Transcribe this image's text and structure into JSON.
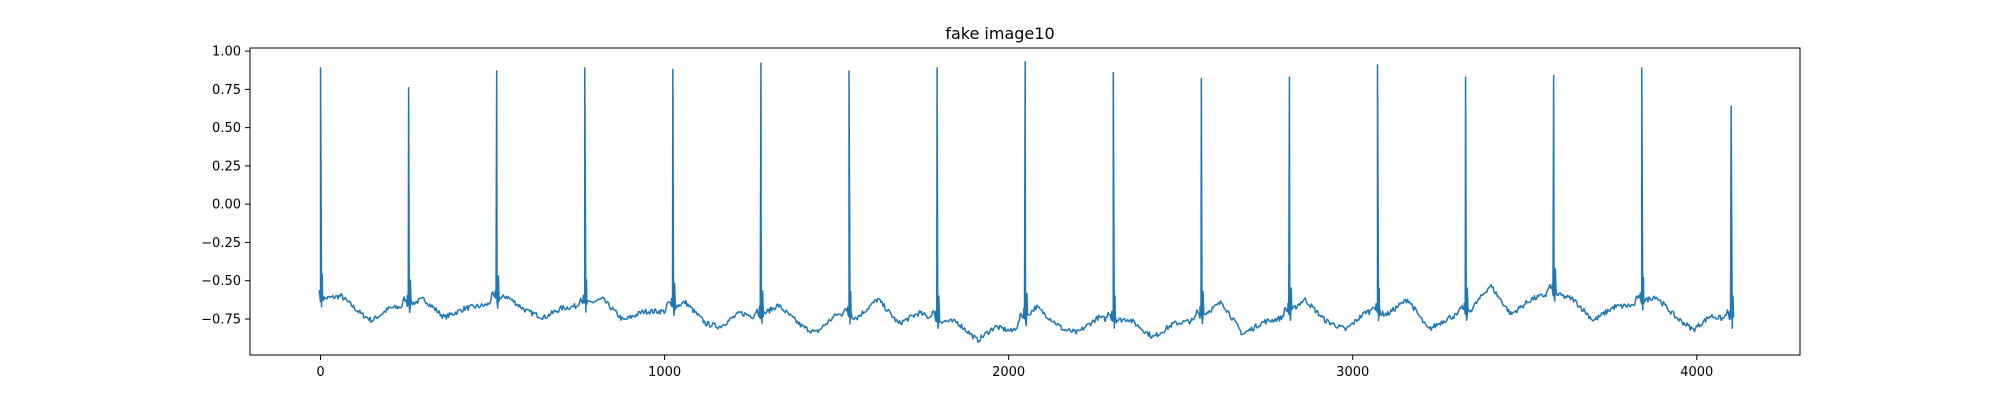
{
  "chart_data": {
    "type": "line",
    "title": "fake image10",
    "xlabel": "",
    "ylabel": "",
    "xlim": [
      -205,
      4300
    ],
    "ylim": [
      -0.985,
      1.02
    ],
    "x_ticks": [
      0,
      1000,
      2000,
      3000,
      4000
    ],
    "x_tick_labels": [
      "0",
      "1000",
      "2000",
      "3000",
      "4000"
    ],
    "y_ticks": [
      -0.75,
      -0.5,
      -0.25,
      0.0,
      0.25,
      0.5,
      0.75,
      1.0
    ],
    "y_tick_labels": [
      "−0.75",
      "−0.50",
      "−0.25",
      "0.00",
      "0.25",
      "0.50",
      "0.75",
      "1.00"
    ],
    "grid": false,
    "line_color": "#1f77b4",
    "series": [
      {
        "x_start": 0,
        "x_end": 4100,
        "beats": [
          {
            "x": 0,
            "peak": 0.89
          },
          {
            "x": 256,
            "peak": 0.76
          },
          {
            "x": 512,
            "peak": 0.87
          },
          {
            "x": 768,
            "peak": 0.89
          },
          {
            "x": 1024,
            "peak": 0.88
          },
          {
            "x": 1280,
            "peak": 0.92
          },
          {
            "x": 1536,
            "peak": 0.87
          },
          {
            "x": 1792,
            "peak": 0.89
          },
          {
            "x": 2048,
            "peak": 0.93
          },
          {
            "x": 2304,
            "peak": 0.86
          },
          {
            "x": 2560,
            "peak": 0.82
          },
          {
            "x": 2816,
            "peak": 0.83
          },
          {
            "x": 3072,
            "peak": 0.91
          },
          {
            "x": 3328,
            "peak": 0.83
          },
          {
            "x": 3584,
            "peak": 0.84
          },
          {
            "x": 3840,
            "peak": 0.89
          },
          {
            "x": 4100,
            "peak": 0.64
          }
        ],
        "baseline": [
          [
            0,
            -0.62
          ],
          [
            60,
            -0.6
          ],
          [
            120,
            -0.72
          ],
          [
            150,
            -0.76
          ],
          [
            200,
            -0.68
          ],
          [
            240,
            -0.67
          ],
          [
            300,
            -0.62
          ],
          [
            360,
            -0.74
          ],
          [
            420,
            -0.68
          ],
          [
            480,
            -0.66
          ],
          [
            540,
            -0.6
          ],
          [
            600,
            -0.7
          ],
          [
            650,
            -0.74
          ],
          [
            700,
            -0.68
          ],
          [
            760,
            -0.66
          ],
          [
            820,
            -0.62
          ],
          [
            880,
            -0.76
          ],
          [
            940,
            -0.7
          ],
          [
            1000,
            -0.7
          ],
          [
            1060,
            -0.64
          ],
          [
            1120,
            -0.78
          ],
          [
            1160,
            -0.8
          ],
          [
            1220,
            -0.71
          ],
          [
            1270,
            -0.74
          ],
          [
            1330,
            -0.66
          ],
          [
            1400,
            -0.8
          ],
          [
            1440,
            -0.84
          ],
          [
            1500,
            -0.72
          ],
          [
            1560,
            -0.74
          ],
          [
            1620,
            -0.62
          ],
          [
            1680,
            -0.78
          ],
          [
            1740,
            -0.71
          ],
          [
            1790,
            -0.76
          ],
          [
            1850,
            -0.77
          ],
          [
            1910,
            -0.89
          ],
          [
            1960,
            -0.8
          ],
          [
            2010,
            -0.83
          ],
          [
            2080,
            -0.67
          ],
          [
            2160,
            -0.82
          ],
          [
            2200,
            -0.84
          ],
          [
            2260,
            -0.74
          ],
          [
            2300,
            -0.76
          ],
          [
            2350,
            -0.75
          ],
          [
            2420,
            -0.87
          ],
          [
            2480,
            -0.78
          ],
          [
            2540,
            -0.76
          ],
          [
            2620,
            -0.64
          ],
          [
            2680,
            -0.85
          ],
          [
            2740,
            -0.77
          ],
          [
            2800,
            -0.74
          ],
          [
            2860,
            -0.62
          ],
          [
            2920,
            -0.76
          ],
          [
            2980,
            -0.82
          ],
          [
            3040,
            -0.7
          ],
          [
            3100,
            -0.72
          ],
          [
            3160,
            -0.62
          ],
          [
            3220,
            -0.82
          ],
          [
            3280,
            -0.74
          ],
          [
            3340,
            -0.7
          ],
          [
            3400,
            -0.53
          ],
          [
            3460,
            -0.72
          ],
          [
            3520,
            -0.62
          ],
          [
            3580,
            -0.58
          ],
          [
            3640,
            -0.62
          ],
          [
            3700,
            -0.76
          ],
          [
            3760,
            -0.67
          ],
          [
            3820,
            -0.66
          ],
          [
            3880,
            -0.6
          ],
          [
            3940,
            -0.74
          ],
          [
            3990,
            -0.82
          ],
          [
            4040,
            -0.73
          ],
          [
            4100,
            -0.76
          ]
        ]
      }
    ]
  }
}
